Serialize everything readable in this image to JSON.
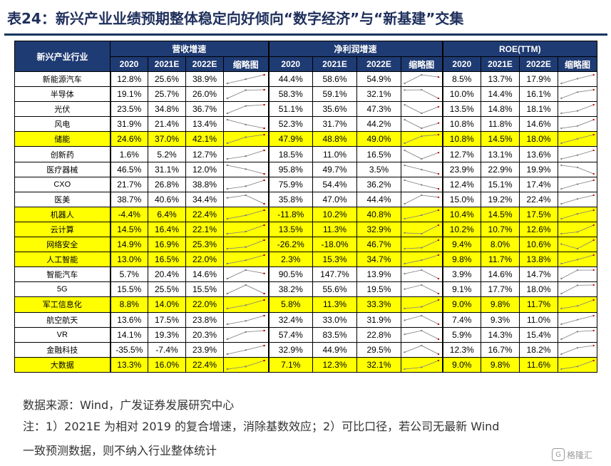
{
  "title": "表24：新兴产业业绩预期整体稳定向好倾向“数字经济”与“新基建”交集",
  "table": {
    "corner_label": "新兴产业行业",
    "groups": [
      "营收增速",
      "净利润增速",
      "ROE(TTM)"
    ],
    "subheaders": [
      "2020",
      "2021E",
      "2022E",
      "缩略图"
    ],
    "highlight_color": "#ffff00",
    "header_color": "#1f3b73",
    "rows": [
      {
        "name": "新能源汽车",
        "hl": false,
        "rev": [
          "12.8%",
          "25.6%",
          "38.9%"
        ],
        "np": [
          "44.4%",
          "58.6%",
          "54.9%"
        ],
        "roe": [
          "8.5%",
          "13.7%",
          "17.9%"
        ]
      },
      {
        "name": "半导体",
        "hl": false,
        "rev": [
          "19.1%",
          "25.7%",
          "26.0%"
        ],
        "np": [
          "58.3%",
          "59.1%",
          "32.1%"
        ],
        "roe": [
          "10.0%",
          "14.4%",
          "16.1%"
        ]
      },
      {
        "name": "光伏",
        "hl": false,
        "rev": [
          "23.5%",
          "34.8%",
          "36.7%"
        ],
        "np": [
          "51.1%",
          "35.6%",
          "47.3%"
        ],
        "roe": [
          "13.5%",
          "14.8%",
          "18.1%"
        ]
      },
      {
        "name": "风电",
        "hl": false,
        "rev": [
          "31.9%",
          "21.4%",
          "13.4%"
        ],
        "np": [
          "52.3%",
          "31.7%",
          "44.2%"
        ],
        "roe": [
          "10.8%",
          "11.8%",
          "14.6%"
        ]
      },
      {
        "name": "储能",
        "hl": true,
        "rev": [
          "24.6%",
          "37.0%",
          "42.1%"
        ],
        "np": [
          "47.9%",
          "48.8%",
          "49.0%"
        ],
        "roe": [
          "10.8%",
          "14.5%",
          "18.0%"
        ]
      },
      {
        "name": "创新药",
        "hl": false,
        "rev": [
          "1.6%",
          "5.2%",
          "12.7%"
        ],
        "np": [
          "18.5%",
          "11.0%",
          "16.5%"
        ],
        "roe": [
          "12.7%",
          "13.1%",
          "13.6%"
        ]
      },
      {
        "name": "医疗器械",
        "hl": false,
        "rev": [
          "46.5%",
          "31.1%",
          "12.0%"
        ],
        "np": [
          "95.8%",
          "49.7%",
          "3.5%"
        ],
        "roe": [
          "23.9%",
          "22.9%",
          "19.9%"
        ]
      },
      {
        "name": "CXO",
        "hl": false,
        "rev": [
          "21.7%",
          "26.8%",
          "38.8%"
        ],
        "np": [
          "75.9%",
          "54.4%",
          "36.2%"
        ],
        "roe": [
          "12.4%",
          "15.1%",
          "17.4%"
        ]
      },
      {
        "name": "医美",
        "hl": false,
        "rev": [
          "38.7%",
          "40.6%",
          "34.4%"
        ],
        "np": [
          "35.8%",
          "47.0%",
          "44.4%"
        ],
        "roe": [
          "15.0%",
          "19.2%",
          "22.4%"
        ]
      },
      {
        "name": "机器人",
        "hl": true,
        "rev": [
          "-4.4%",
          "6.4%",
          "22.4%"
        ],
        "np": [
          "-11.8%",
          "10.2%",
          "40.8%"
        ],
        "roe": [
          "10.4%",
          "14.5%",
          "17.5%"
        ]
      },
      {
        "name": "云计算",
        "hl": true,
        "rev": [
          "14.5%",
          "16.4%",
          "22.1%"
        ],
        "np": [
          "13.5%",
          "11.3%",
          "32.9%"
        ],
        "roe": [
          "10.2%",
          "10.7%",
          "12.6%"
        ]
      },
      {
        "name": "网络安全",
        "hl": true,
        "rev": [
          "14.9%",
          "16.9%",
          "25.3%"
        ],
        "np": [
          "-26.2%",
          "-18.0%",
          "46.7%"
        ],
        "roe": [
          "9.4%",
          "8.0%",
          "10.6%"
        ]
      },
      {
        "name": "人工智能",
        "hl": true,
        "rev": [
          "13.0%",
          "16.5%",
          "22.0%"
        ],
        "np": [
          "2.3%",
          "15.3%",
          "34.7%"
        ],
        "roe": [
          "9.8%",
          "11.7%",
          "13.8%"
        ]
      },
      {
        "name": "智能汽车",
        "hl": false,
        "rev": [
          "5.7%",
          "20.4%",
          "14.6%"
        ],
        "np": [
          "90.5%",
          "147.7%",
          "13.9%"
        ],
        "roe": [
          "3.9%",
          "14.6%",
          "14.7%"
        ]
      },
      {
        "name": "5G",
        "hl": false,
        "rev": [
          "15.5%",
          "25.5%",
          "15.5%"
        ],
        "np": [
          "38.2%",
          "55.6%",
          "19.5%"
        ],
        "roe": [
          "9.1%",
          "17.7%",
          "18.0%"
        ]
      },
      {
        "name": "军工信息化",
        "hl": true,
        "rev": [
          "8.8%",
          "14.0%",
          "22.0%"
        ],
        "np": [
          "5.8%",
          "11.3%",
          "33.3%"
        ],
        "roe": [
          "9.0%",
          "9.8%",
          "11.7%"
        ]
      },
      {
        "name": "航空航天",
        "hl": false,
        "rev": [
          "13.6%",
          "17.5%",
          "23.8%"
        ],
        "np": [
          "32.4%",
          "33.0%",
          "31.9%"
        ],
        "roe": [
          "7.4%",
          "9.3%",
          "11.0%"
        ]
      },
      {
        "name": "VR",
        "hl": false,
        "rev": [
          "14.1%",
          "19.3%",
          "20.3%"
        ],
        "np": [
          "57.4%",
          "83.5%",
          "22.8%"
        ],
        "roe": [
          "5.9%",
          "14.3%",
          "15.4%"
        ]
      },
      {
        "name": "金融科技",
        "hl": false,
        "rev": [
          "-35.5%",
          "-7.4%",
          "23.9%"
        ],
        "np": [
          "32.9%",
          "44.9%",
          "29.5%"
        ],
        "roe": [
          "12.3%",
          "16.7%",
          "18.2%"
        ]
      },
      {
        "name": "大数据",
        "hl": true,
        "rev": [
          "13.3%",
          "16.0%",
          "22.4%"
        ],
        "np": [
          "7.1%",
          "12.3%",
          "32.1%"
        ],
        "roe": [
          "9.0%",
          "9.8%",
          "11.6%"
        ]
      }
    ]
  },
  "source": "数据来源：Wind，广发证券发展研究中心",
  "note_line1": "注：1）2021E 为相对 2019 的复合增速，消除基数效应；2）可比口径，若公司无最新 Wind",
  "note_line2": "一致预测数据，则不纳入行业整体统计",
  "watermark": "格隆汇",
  "watermark_icon": "G"
}
